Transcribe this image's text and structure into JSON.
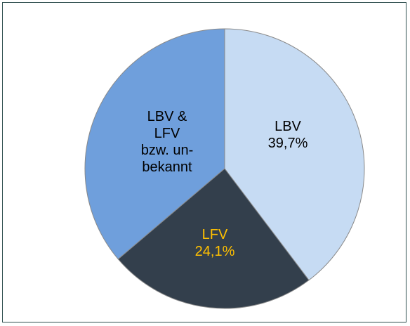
{
  "chart_data": {
    "type": "pie",
    "categories": [
      "LBV",
      "LFV",
      "LBV &\nLFV\nbzw. un-\nbekannt"
    ],
    "values": [
      39.7,
      24.1,
      36.2
    ],
    "value_labels": [
      "39,7%",
      "24,1%",
      null
    ],
    "colors": [
      "#c6dbf3",
      "#333f4c",
      "#6f9fdc"
    ],
    "label_colors": [
      "#000000",
      "#ffc000",
      "#000000"
    ]
  }
}
